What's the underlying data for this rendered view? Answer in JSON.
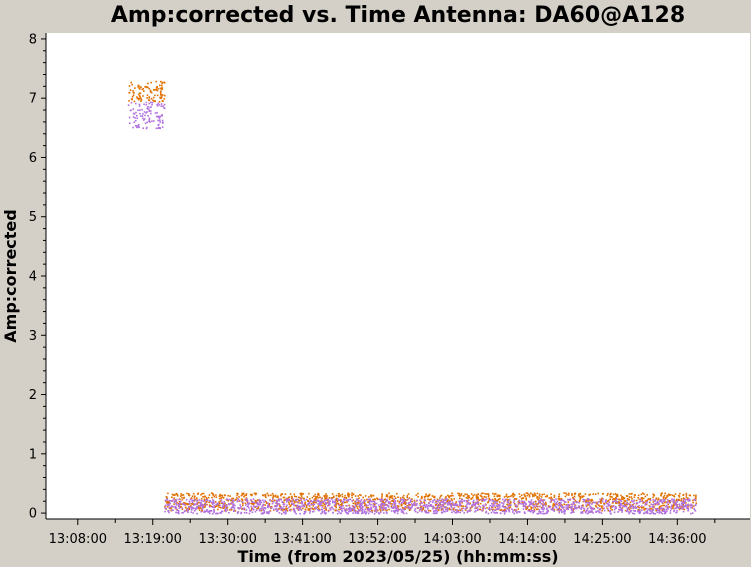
{
  "chart_data": {
    "type": "scatter",
    "title": "Amp:corrected vs. Time Antenna: DA60@A128",
    "xlabel": "Time (from 2023/05/25) (hh:mm:ss)",
    "ylabel": "Amp:corrected",
    "xlim": [
      "13:03:20",
      "14:46:40"
    ],
    "ylim": [
      -0.1,
      8.1
    ],
    "x_ticks": [
      "13:08:00",
      "13:19:00",
      "13:30:00",
      "13:41:00",
      "13:52:00",
      "14:03:00",
      "14:14:00",
      "14:25:00",
      "14:36:00"
    ],
    "y_ticks": [
      0,
      1,
      2,
      3,
      4,
      5,
      6,
      7,
      8
    ],
    "grid": false,
    "series": [
      {
        "color": "#e07000",
        "segments": [
          {
            "x": [
              "13:15:20",
              "13:20:40"
            ],
            "y": [
              6.95,
              7.3
            ]
          },
          {
            "x": [
              "13:20:40",
              "14:38:40"
            ],
            "y": [
              0.05,
              0.35
            ]
          }
        ]
      },
      {
        "color": "#b070e0",
        "segments": [
          {
            "x": [
              "13:15:20",
              "13:20:40"
            ],
            "y": [
              6.5,
              6.95
            ]
          },
          {
            "x": [
              "13:20:40",
              "14:38:40"
            ],
            "y": [
              0.0,
              0.25
            ]
          }
        ]
      }
    ]
  }
}
